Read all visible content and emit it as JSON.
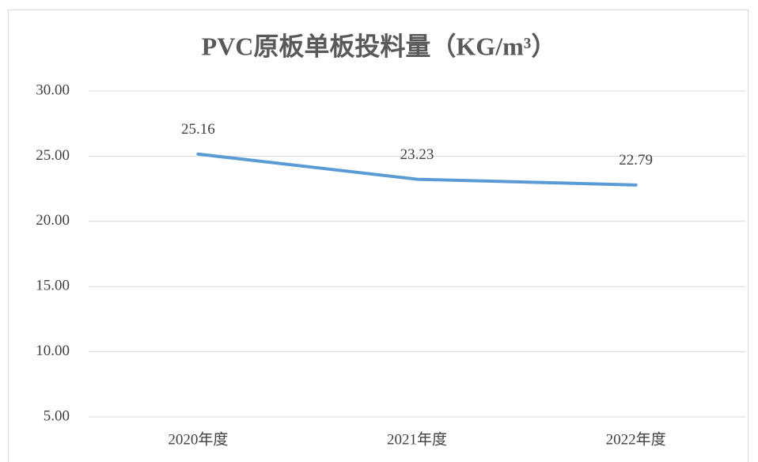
{
  "chart_data": {
    "type": "line",
    "title": "PVC原板单板投料量（KG/m³）",
    "categories": [
      "2020年度",
      "2021年度",
      "2022年度"
    ],
    "values": [
      25.16,
      23.23,
      22.79
    ],
    "color": "#5b9bd5",
    "ylim": [
      5,
      30
    ],
    "yticks": [
      {
        "value": 5,
        "label": "5.00"
      },
      {
        "value": 10,
        "label": "10.00"
      },
      {
        "value": 15,
        "label": "15.00"
      },
      {
        "value": 20,
        "label": "20.00"
      },
      {
        "value": 25,
        "label": "25.00"
      },
      {
        "value": 30,
        "label": "30.00"
      }
    ],
    "grid": true
  }
}
